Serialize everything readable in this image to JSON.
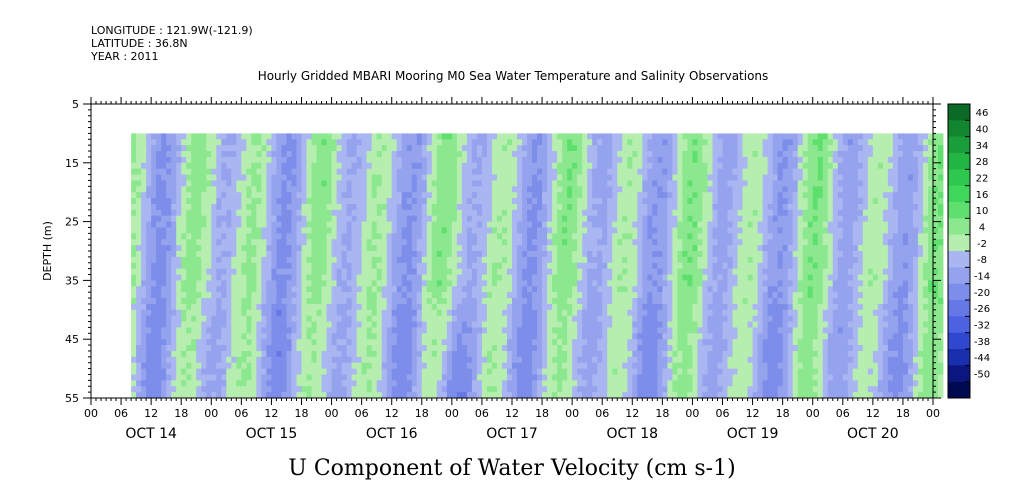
{
  "header": {
    "longitude": "LONGITUDE : 121.9W(-121.9)",
    "latitude": "LATITUDE : 36.8N",
    "year": "YEAR : 2011",
    "title": "Hourly Gridded MBARI Mooring M0 Sea Water Temperature and Salinity Observations"
  },
  "bottom_label": "U Component of Water Velocity (cm s-1)",
  "chart_data": {
    "type": "heatmap",
    "title": "Hourly Gridded MBARI Mooring M0 Sea Water Temperature and Salinity Observations",
    "xlabel": "",
    "ylabel": "DEPTH (m)",
    "colorbar_label": "U Component of Water Velocity (cm s-1)",
    "ylim": [
      55,
      5
    ],
    "y_ticks": [
      "5",
      "15",
      "25",
      "35",
      "45",
      "55"
    ],
    "x_hour_ticks": [
      "00",
      "06",
      "12",
      "18",
      "00",
      "06",
      "12",
      "18",
      "00",
      "06",
      "12",
      "18",
      "00",
      "06",
      "12",
      "18",
      "00",
      "06",
      "12",
      "18",
      "00",
      "06",
      "12",
      "18",
      "00",
      "06",
      "12",
      "18",
      "00"
    ],
    "x_day_labels": [
      "OCT 14",
      "OCT 15",
      "OCT 16",
      "OCT 17",
      "OCT 18",
      "OCT 19",
      "OCT 20"
    ],
    "data_time_range_hours": [
      8,
      170
    ],
    "data_depth_range_m": [
      10,
      55
    ],
    "colorbar_levels": [
      "46",
      "40",
      "34",
      "28",
      "22",
      "16",
      "10",
      "4",
      "-2",
      "-8",
      "-14",
      "-20",
      "-26",
      "-32",
      "-38",
      "-44",
      "-50"
    ],
    "colorbar_colors": [
      "#0b6b26",
      "#12862f",
      "#1a9e39",
      "#22b543",
      "#2ec84f",
      "#3fd65c",
      "#5fe06e",
      "#8ce88e",
      "#b6eeb0",
      "#aab6f1",
      "#95a3ee",
      "#7d8dea",
      "#6578e6",
      "#4d62e2",
      "#3047cf",
      "#1a2fb0",
      "#0b1680",
      "#000a50"
    ],
    "pattern": "alternating bands: green (eastward, positive) and blue/purple (westward, negative) velocity roughly every half-day; strongest negative (dark blue) near OCT 17 00 at 40-55 m"
  }
}
